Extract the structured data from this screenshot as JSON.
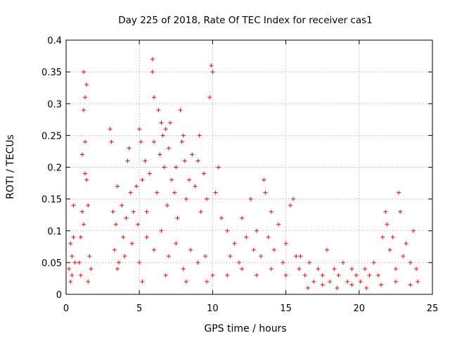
{
  "chart_data": {
    "type": "scatter",
    "title": "Day 225 of 2018, Rate Of TEC Index for receiver cas1",
    "xlabel": "GPS time / hours",
    "ylabel": "ROTI / TECUs",
    "xlim": [
      0,
      25
    ],
    "ylim": [
      0,
      0.4
    ],
    "xticks": [
      0,
      5,
      10,
      15,
      20,
      25
    ],
    "xtick_labels": [
      "0",
      "5",
      "10",
      "15",
      "20",
      "25"
    ],
    "yticks": [
      0,
      0.05,
      0.1,
      0.15,
      0.2,
      0.25,
      0.3,
      0.35,
      0.4
    ],
    "ytick_labels": [
      "0",
      "0.05",
      "0.1",
      "0.15",
      "0.2",
      "0.25",
      "0.3",
      "0.35",
      "0.4"
    ],
    "grid": true,
    "marker": "plus",
    "color": "#ff0000",
    "series": [
      {
        "values_xy": [
          [
            0.2,
            0.04
          ],
          [
            0.3,
            0.08
          ],
          [
            0.4,
            0.06
          ],
          [
            0.5,
            0.14
          ],
          [
            0.4,
            0.03
          ],
          [
            0.3,
            0.02
          ],
          [
            0.5,
            0.09
          ],
          [
            0.6,
            0.05
          ],
          [
            0.9,
            0.05
          ],
          [
            1.0,
            0.09
          ],
          [
            1.1,
            0.22
          ],
          [
            1.2,
            0.29
          ],
          [
            1.2,
            0.35
          ],
          [
            1.3,
            0.31
          ],
          [
            1.3,
            0.24
          ],
          [
            1.4,
            0.33
          ],
          [
            1.4,
            0.18
          ],
          [
            1.5,
            0.14
          ],
          [
            1.6,
            0.06
          ],
          [
            1.7,
            0.04
          ],
          [
            1.2,
            0.11
          ],
          [
            1.1,
            0.13
          ],
          [
            1.0,
            0.03
          ],
          [
            1.5,
            0.02
          ],
          [
            1.3,
            0.19
          ],
          [
            3.0,
            0.26
          ],
          [
            3.1,
            0.24
          ],
          [
            3.2,
            0.13
          ],
          [
            3.3,
            0.07
          ],
          [
            3.5,
            0.17
          ],
          [
            3.4,
            0.11
          ],
          [
            3.6,
            0.05
          ],
          [
            3.8,
            0.14
          ],
          [
            3.9,
            0.09
          ],
          [
            4.1,
            0.12
          ],
          [
            4.2,
            0.21
          ],
          [
            4.4,
            0.16
          ],
          [
            4.3,
            0.23
          ],
          [
            4.6,
            0.13
          ],
          [
            4.8,
            0.17
          ],
          [
            4.9,
            0.11
          ],
          [
            5.0,
            0.26
          ],
          [
            5.1,
            0.24
          ],
          [
            5.2,
            0.18
          ],
          [
            5.4,
            0.21
          ],
          [
            5.5,
            0.13
          ],
          [
            5.7,
            0.19
          ],
          [
            5.9,
            0.37
          ],
          [
            5.9,
            0.35
          ],
          [
            6.0,
            0.31
          ],
          [
            6.0,
            0.24
          ],
          [
            6.2,
            0.16
          ],
          [
            6.3,
            0.29
          ],
          [
            6.4,
            0.22
          ],
          [
            6.5,
            0.27
          ],
          [
            6.6,
            0.25
          ],
          [
            6.7,
            0.2
          ],
          [
            6.8,
            0.26
          ],
          [
            6.9,
            0.14
          ],
          [
            7.0,
            0.23
          ],
          [
            7.1,
            0.27
          ],
          [
            7.2,
            0.18
          ],
          [
            7.4,
            0.16
          ],
          [
            7.5,
            0.2
          ],
          [
            7.6,
            0.12
          ],
          [
            7.8,
            0.29
          ],
          [
            7.9,
            0.24
          ],
          [
            8.0,
            0.25
          ],
          [
            8.1,
            0.21
          ],
          [
            8.2,
            0.15
          ],
          [
            8.4,
            0.18
          ],
          [
            8.6,
            0.22
          ],
          [
            8.8,
            0.17
          ],
          [
            9.0,
            0.21
          ],
          [
            9.1,
            0.25
          ],
          [
            9.2,
            0.13
          ],
          [
            9.4,
            0.19
          ],
          [
            9.6,
            0.15
          ],
          [
            9.8,
            0.31
          ],
          [
            9.9,
            0.36
          ],
          [
            10.0,
            0.35
          ],
          [
            10.2,
            0.16
          ],
          [
            10.4,
            0.2
          ],
          [
            10.6,
            0.12
          ],
          [
            3.5,
            0.04
          ],
          [
            4.0,
            0.06
          ],
          [
            4.5,
            0.08
          ],
          [
            5.0,
            0.05
          ],
          [
            5.5,
            0.09
          ],
          [
            6.0,
            0.07
          ],
          [
            6.5,
            0.1
          ],
          [
            7.0,
            0.06
          ],
          [
            7.5,
            0.08
          ],
          [
            8.0,
            0.04
          ],
          [
            8.5,
            0.07
          ],
          [
            9.0,
            0.05
          ],
          [
            9.5,
            0.06
          ],
          [
            10.0,
            0.03
          ],
          [
            5.2,
            0.02
          ],
          [
            6.8,
            0.03
          ],
          [
            8.2,
            0.02
          ],
          [
            9.6,
            0.02
          ],
          [
            11.0,
            0.1
          ],
          [
            11.2,
            0.06
          ],
          [
            11.5,
            0.08
          ],
          [
            11.8,
            0.05
          ],
          [
            12.0,
            0.12
          ],
          [
            12.3,
            0.09
          ],
          [
            12.6,
            0.15
          ],
          [
            12.8,
            0.07
          ],
          [
            13.0,
            0.1
          ],
          [
            13.3,
            0.06
          ],
          [
            13.5,
            0.18
          ],
          [
            13.6,
            0.16
          ],
          [
            13.8,
            0.09
          ],
          [
            14.0,
            0.13
          ],
          [
            14.2,
            0.07
          ],
          [
            14.5,
            0.11
          ],
          [
            14.8,
            0.05
          ],
          [
            15.0,
            0.08
          ],
          [
            15.3,
            0.14
          ],
          [
            15.5,
            0.15
          ],
          [
            15.7,
            0.06
          ],
          [
            15.9,
            0.04
          ],
          [
            11.0,
            0.03
          ],
          [
            12.0,
            0.04
          ],
          [
            13.0,
            0.03
          ],
          [
            14.0,
            0.04
          ],
          [
            15.0,
            0.03
          ],
          [
            16.0,
            0.06
          ],
          [
            16.3,
            0.03
          ],
          [
            16.6,
            0.05
          ],
          [
            16.9,
            0.02
          ],
          [
            17.2,
            0.04
          ],
          [
            17.5,
            0.03
          ],
          [
            17.8,
            0.07
          ],
          [
            18.0,
            0.02
          ],
          [
            18.3,
            0.04
          ],
          [
            18.6,
            0.03
          ],
          [
            18.9,
            0.05
          ],
          [
            19.2,
            0.02
          ],
          [
            19.5,
            0.04
          ],
          [
            19.8,
            0.03
          ],
          [
            20.1,
            0.02
          ],
          [
            20.4,
            0.04
          ],
          [
            20.7,
            0.03
          ],
          [
            21.0,
            0.05
          ],
          [
            21.3,
            0.03
          ],
          [
            21.6,
            0.09
          ],
          [
            21.8,
            0.13
          ],
          [
            21.9,
            0.11
          ],
          [
            22.1,
            0.07
          ],
          [
            22.3,
            0.09
          ],
          [
            22.5,
            0.04
          ],
          [
            22.7,
            0.16
          ],
          [
            22.8,
            0.13
          ],
          [
            23.0,
            0.06
          ],
          [
            23.2,
            0.08
          ],
          [
            23.5,
            0.05
          ],
          [
            23.7,
            0.1
          ],
          [
            23.9,
            0.04
          ],
          [
            24.0,
            0.02
          ],
          [
            16.5,
            0.01
          ],
          [
            17.5,
            0.015
          ],
          [
            18.5,
            0.01
          ],
          [
            19.5,
            0.015
          ],
          [
            20.5,
            0.01
          ],
          [
            21.5,
            0.015
          ],
          [
            22.5,
            0.02
          ],
          [
            23.5,
            0.015
          ]
        ]
      }
    ]
  }
}
